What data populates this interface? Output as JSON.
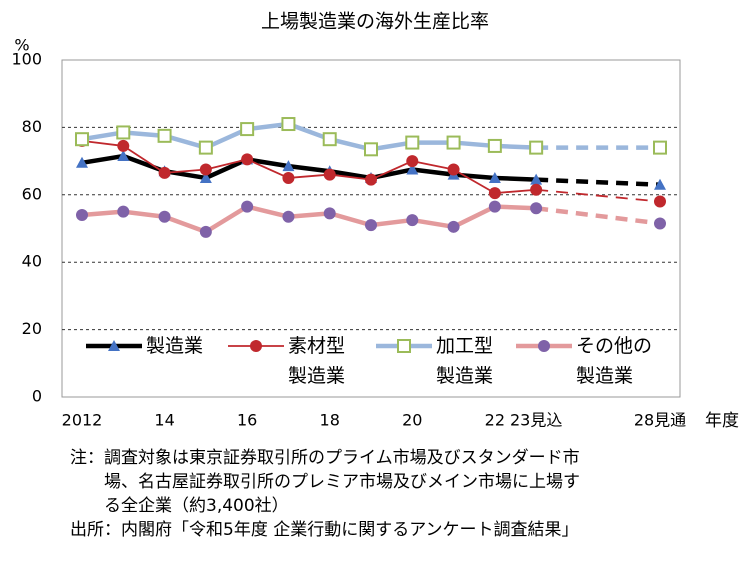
{
  "chart_data": {
    "type": "line",
    "title": "上場製造業の海外生産比率",
    "y_label": "%",
    "x_label": "年度",
    "categories": [
      "2012",
      null,
      "14",
      null,
      "16",
      null,
      "18",
      null,
      "20",
      null,
      "22",
      "23見込",
      null,
      null,
      "28見通"
    ],
    "ylim": [
      0,
      100
    ],
    "yticks": [
      0,
      20,
      40,
      60,
      80,
      100
    ],
    "grid": true,
    "series": [
      {
        "name": "製造業",
        "color": "#000000",
        "marker": "triangle",
        "marker_color": "#4472c4",
        "values": [
          69.5,
          71.5,
          67,
          65,
          70.5,
          68.5,
          67,
          65,
          67.5,
          66,
          65,
          64.5,
          null,
          null,
          63
        ]
      },
      {
        "name": "素材型\n製造業",
        "color": "#c0282d",
        "marker": "circle",
        "marker_color": "#c0282d",
        "values": [
          76,
          74.5,
          66.5,
          67.5,
          70.5,
          65,
          66,
          64.5,
          70,
          67.5,
          60.5,
          61.5,
          null,
          null,
          58
        ]
      },
      {
        "name": "加工型\n製造業",
        "color": "#9bb7dc",
        "marker": "square",
        "marker_color": "#9bbb59",
        "values": [
          76.5,
          78.5,
          77.5,
          74,
          79.5,
          81,
          76.5,
          73.5,
          75.5,
          75.5,
          74.5,
          74,
          null,
          null,
          74
        ]
      },
      {
        "name": "その他の\n製造業",
        "color": "#e39a9c",
        "marker": "circle",
        "marker_color": "#7f62a8",
        "values": [
          54,
          55,
          53.5,
          49,
          56.5,
          53.5,
          54.5,
          51,
          52.5,
          50.5,
          56.5,
          56,
          null,
          null,
          51.5
        ]
      }
    ],
    "notes": [
      "注：調査対象は東京証券取引所のプライム市場及びスタンダード市",
      "　　場、名古屋証券取引所のプレミア市場及びメイン市場に上場す",
      "　　る全企業（約3,400社）"
    ],
    "source": "出所：内閣府「令和5年度 企業行動に関するアンケート調査結果」"
  }
}
